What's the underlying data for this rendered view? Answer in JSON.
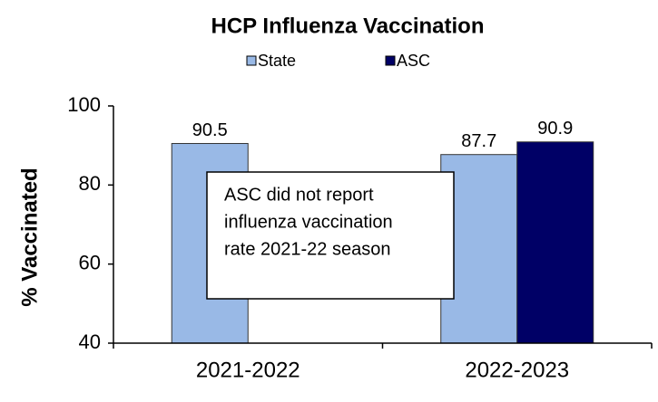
{
  "chart_data": {
    "type": "bar",
    "title": "HCP Influenza Vaccination",
    "y_label": "% Vaccinated",
    "categories": [
      "2021-2022",
      "2022-2023"
    ],
    "series": [
      {
        "name": "State",
        "color": "#99b9e6",
        "values": [
          90.5,
          87.7
        ]
      },
      {
        "name": "ASC",
        "color": "#000066",
        "values": [
          null,
          90.9
        ]
      }
    ],
    "ylim": [
      40,
      100
    ],
    "yticks": [
      40,
      60,
      80,
      100
    ],
    "annotation": [
      "ASC did not report",
      "influenza vaccination",
      "rate 2021-22 season"
    ]
  }
}
